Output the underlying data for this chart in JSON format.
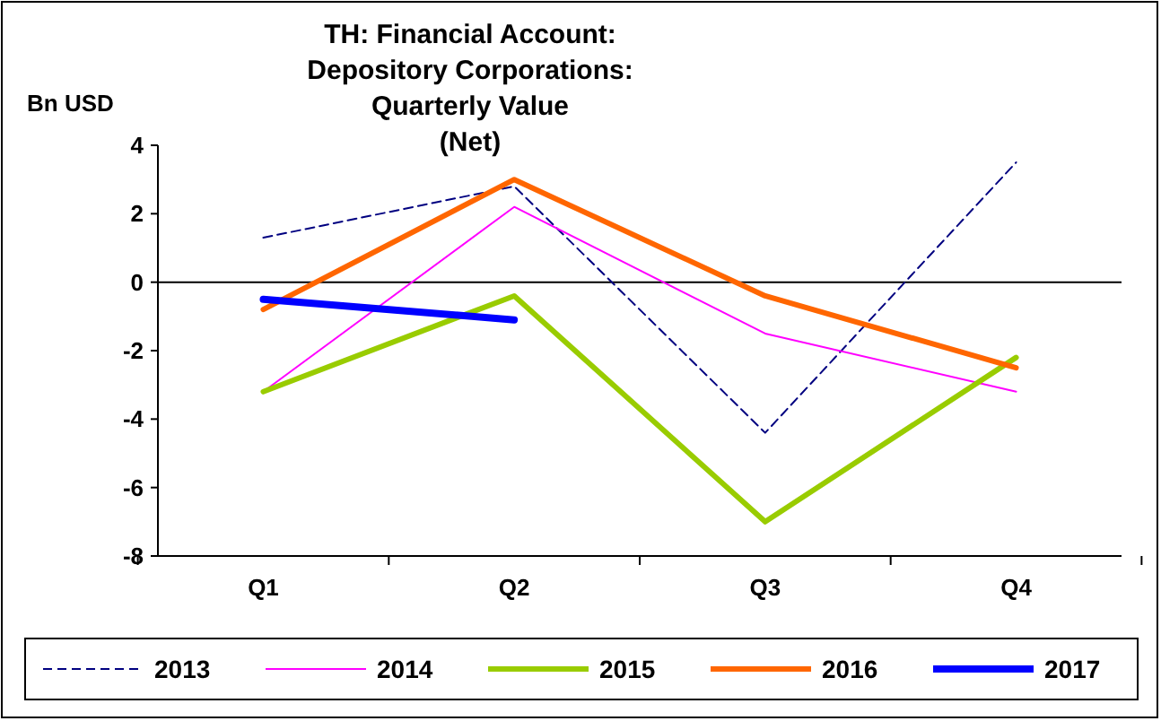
{
  "chart_data": {
    "type": "line",
    "title": "TH: Financial Account:\nDepository Corporations:\nQuarterly Value\n(Net)",
    "ylabel": "Bn USD",
    "categories": [
      "Q1",
      "Q2",
      "Q3",
      "Q4"
    ],
    "series": [
      {
        "name": "2013",
        "color": "#000080",
        "values": [
          1.3,
          2.8,
          -4.4,
          3.5
        ],
        "line_style": "dashed"
      },
      {
        "name": "2014",
        "color": "#ff00ff",
        "values": [
          -3.2,
          2.2,
          -1.5,
          -3.2
        ]
      },
      {
        "name": "2015",
        "color": "#99cc00",
        "values": [
          -3.2,
          -0.4,
          -7.0,
          -2.2
        ]
      },
      {
        "name": "2016",
        "color": "#ff6600",
        "values": [
          -0.8,
          3.0,
          -0.4,
          -2.5
        ]
      },
      {
        "name": "2017",
        "color": "#0000ff",
        "values": [
          -0.5,
          -1.1,
          null,
          null
        ]
      }
    ],
    "ylim": [
      -8,
      4
    ],
    "yticks": [
      -8,
      -6,
      -4,
      -2,
      0,
      2,
      4
    ],
    "ref_lines": [
      {
        "axis": "y",
        "value": 0
      }
    ],
    "legend": "bottom"
  }
}
